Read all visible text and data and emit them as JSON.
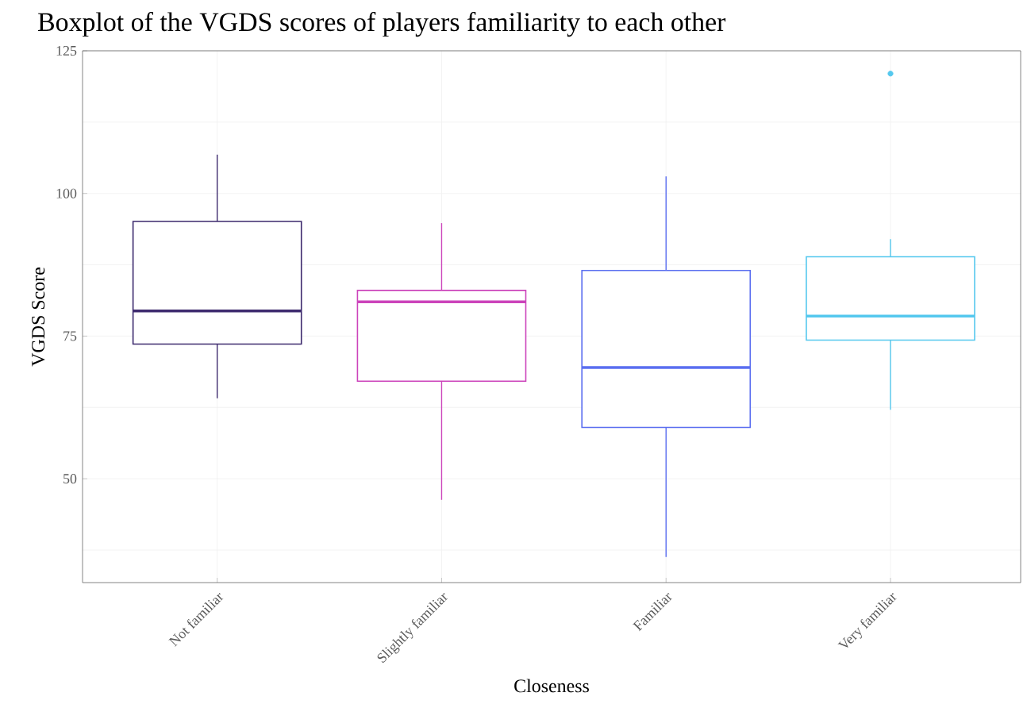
{
  "chart_data": {
    "type": "box",
    "title": "Boxplot of the VGDS scores of players familiarity to each other",
    "xlabel": "Closeness",
    "ylabel": "VGDS Score",
    "categories": [
      "Not familiar",
      "Slightly familiar",
      "Familiar",
      "Very familiar"
    ],
    "boxes": [
      {
        "low": 64.1,
        "q1": 73.6,
        "median": 79.4,
        "q3": 95.1,
        "high": 106.8
      },
      {
        "low": 46.3,
        "q1": 67.1,
        "median": 81.0,
        "q3": 83.0,
        "high": 94.8
      },
      {
        "low": 36.3,
        "q1": 59.0,
        "median": 69.5,
        "q3": 86.5,
        "high": 103.0
      },
      {
        "low": 62.1,
        "q1": 74.3,
        "median": 78.5,
        "q3": 88.9,
        "high": 92.0,
        "outliers": [
          121.0
        ]
      }
    ],
    "colors": [
      "#3d2a6e",
      "#cc44bb",
      "#5a6ef0",
      "#55c8ee"
    ],
    "ylim": [
      31.8,
      125
    ],
    "yticks": [
      50,
      75,
      100,
      125
    ],
    "grid": true
  }
}
